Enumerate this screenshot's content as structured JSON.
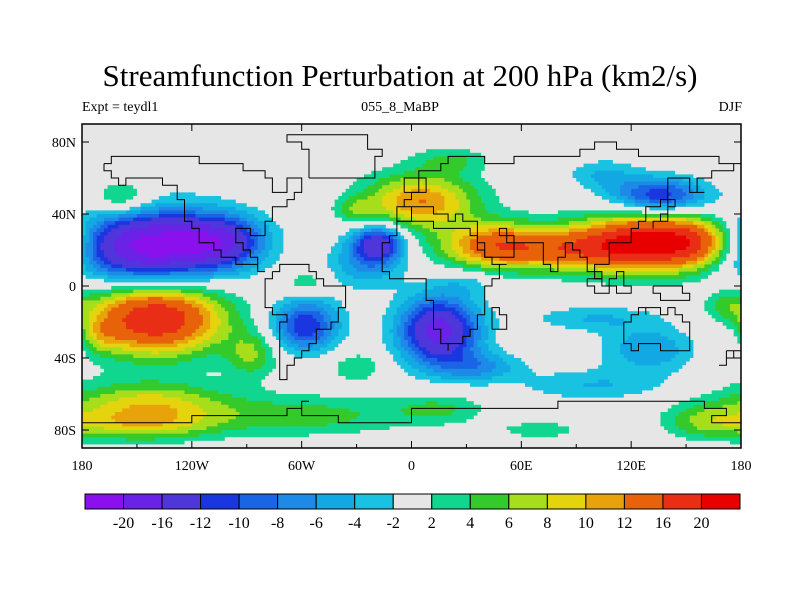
{
  "title": "Streamfunction Perturbation at 200 hPa (km2/s)",
  "left_string": "Expt = teydl1",
  "center_string": "055_8_MaBP",
  "right_string": "DJF",
  "chart_data": {
    "type": "heatmap",
    "title": "Streamfunction Perturbation at 200 hPa (km2/s)",
    "units": "km2/s",
    "xlim": [
      -180,
      180
    ],
    "ylim": [
      -90,
      90
    ],
    "x_ticks": [
      -180,
      -120,
      -60,
      0,
      60,
      120,
      180
    ],
    "x_tick_labels": [
      "180",
      "120W",
      "60W",
      "0",
      "60E",
      "120E",
      "180"
    ],
    "y_ticks": [
      80,
      40,
      0,
      -40,
      -80
    ],
    "y_tick_labels": [
      "80N",
      "40N",
      "0",
      "40S",
      "80S"
    ],
    "missing_color": "#e6e6e6",
    "levels": [
      -20,
      -16,
      -12,
      -10,
      -8,
      -6,
      -4,
      -2,
      2,
      4,
      6,
      8,
      10,
      12,
      16,
      20
    ],
    "colorbar_labels": [
      "-20",
      "-16",
      "-12",
      "-10",
      "-8",
      "-6",
      "-4",
      "-2",
      "2",
      "4",
      "6",
      "8",
      "10",
      "12",
      "16",
      "20"
    ],
    "colors": [
      "#8a10ee",
      "#6a22e6",
      "#4e36da",
      "#1a36e0",
      "#1a64e6",
      "#1e8ae8",
      "#12a8e4",
      "#18c2e0",
      "#e6e6e6",
      "#10d690",
      "#34ca2c",
      "#a6de1c",
      "#e4d40e",
      "#e8a20a",
      "#e8620a",
      "#e82e14",
      "#e80000"
    ],
    "features": [
      {
        "lon": -143,
        "lat": 22,
        "a": -22,
        "slon": 28,
        "slat": 14
      },
      {
        "lon": -103,
        "lat": 25,
        "a": -12,
        "slon": 16,
        "slat": 10
      },
      {
        "lon": -158,
        "lat": 48,
        "a": 6,
        "slon": 12,
        "slat": 7
      },
      {
        "lon": -140,
        "lat": -18,
        "a": 20,
        "slon": 26,
        "slat": 14
      },
      {
        "lon": -172,
        "lat": -28,
        "a": 4,
        "slon": 8,
        "slat": 6
      },
      {
        "lon": -145,
        "lat": -66,
        "a": 9,
        "slon": 32,
        "slat": 9
      },
      {
        "lon": -150,
        "lat": -78,
        "a": 6,
        "slon": 30,
        "slat": 6
      },
      {
        "lon": -87,
        "lat": -38,
        "a": 6,
        "slon": 10,
        "slat": 9
      },
      {
        "lon": -58,
        "lat": -22,
        "a": -12,
        "slon": 13,
        "slat": 10
      },
      {
        "lon": -57,
        "lat": 2,
        "a": 4,
        "slon": 8,
        "slat": 4
      },
      {
        "lon": -58,
        "lat": -72,
        "a": 5,
        "slon": 40,
        "slat": 8
      },
      {
        "lon": -30,
        "lat": 42,
        "a": 4,
        "slon": 8,
        "slat": 5
      },
      {
        "lon": -25,
        "lat": 12,
        "a": -6,
        "slon": 14,
        "slat": 9
      },
      {
        "lon": -30,
        "lat": -45,
        "a": 4,
        "slon": 10,
        "slat": 6
      },
      {
        "lon": -18,
        "lat": 24,
        "a": -14,
        "slon": 10,
        "slat": 7
      },
      {
        "lon": 5,
        "lat": 47,
        "a": 12,
        "slon": 22,
        "slat": 11
      },
      {
        "lon": 22,
        "lat": 70,
        "a": 4,
        "slon": 14,
        "slat": 5
      },
      {
        "lon": 15,
        "lat": -25,
        "a": -18,
        "slon": 15,
        "slat": 13
      },
      {
        "lon": 37,
        "lat": -45,
        "a": -6,
        "slon": 16,
        "slat": 6
      },
      {
        "lon": 30,
        "lat": 2,
        "a": -3,
        "slon": 12,
        "slat": 5
      },
      {
        "lon": 15,
        "lat": -68,
        "a": 4,
        "slon": 18,
        "slat": 6
      },
      {
        "lon": 70,
        "lat": -80,
        "a": 3,
        "slon": 18,
        "slat": 4
      },
      {
        "lon": 48,
        "lat": 22,
        "a": 15,
        "slon": 22,
        "slat": 9
      },
      {
        "lon": 130,
        "lat": 24,
        "a": 22,
        "slon": 27,
        "slat": 11
      },
      {
        "lon": 90,
        "lat": 20,
        "a": 8,
        "slon": 20,
        "slat": 8
      },
      {
        "lon": 157,
        "lat": 24,
        "a": 6,
        "slon": 14,
        "slat": 9
      },
      {
        "lon": 135,
        "lat": 50,
        "a": -12,
        "slon": 18,
        "slat": 7
      },
      {
        "lon": 105,
        "lat": 62,
        "a": -4,
        "slon": 14,
        "slat": 6
      },
      {
        "lon": 100,
        "lat": -18,
        "a": -4,
        "slon": 24,
        "slat": 5
      },
      {
        "lon": 130,
        "lat": -35,
        "a": -6,
        "slon": 18,
        "slat": 9
      },
      {
        "lon": 175,
        "lat": -30,
        "a": -4,
        "slon": 8,
        "slat": 6
      },
      {
        "lon": 100,
        "lat": -55,
        "a": -4,
        "slon": 28,
        "slat": 6
      },
      {
        "lon": 160,
        "lat": -75,
        "a": 5,
        "slon": 16,
        "slat": 7
      },
      {
        "lon": 172,
        "lat": -10,
        "a": 3,
        "slon": 8,
        "slat": 5
      }
    ]
  }
}
